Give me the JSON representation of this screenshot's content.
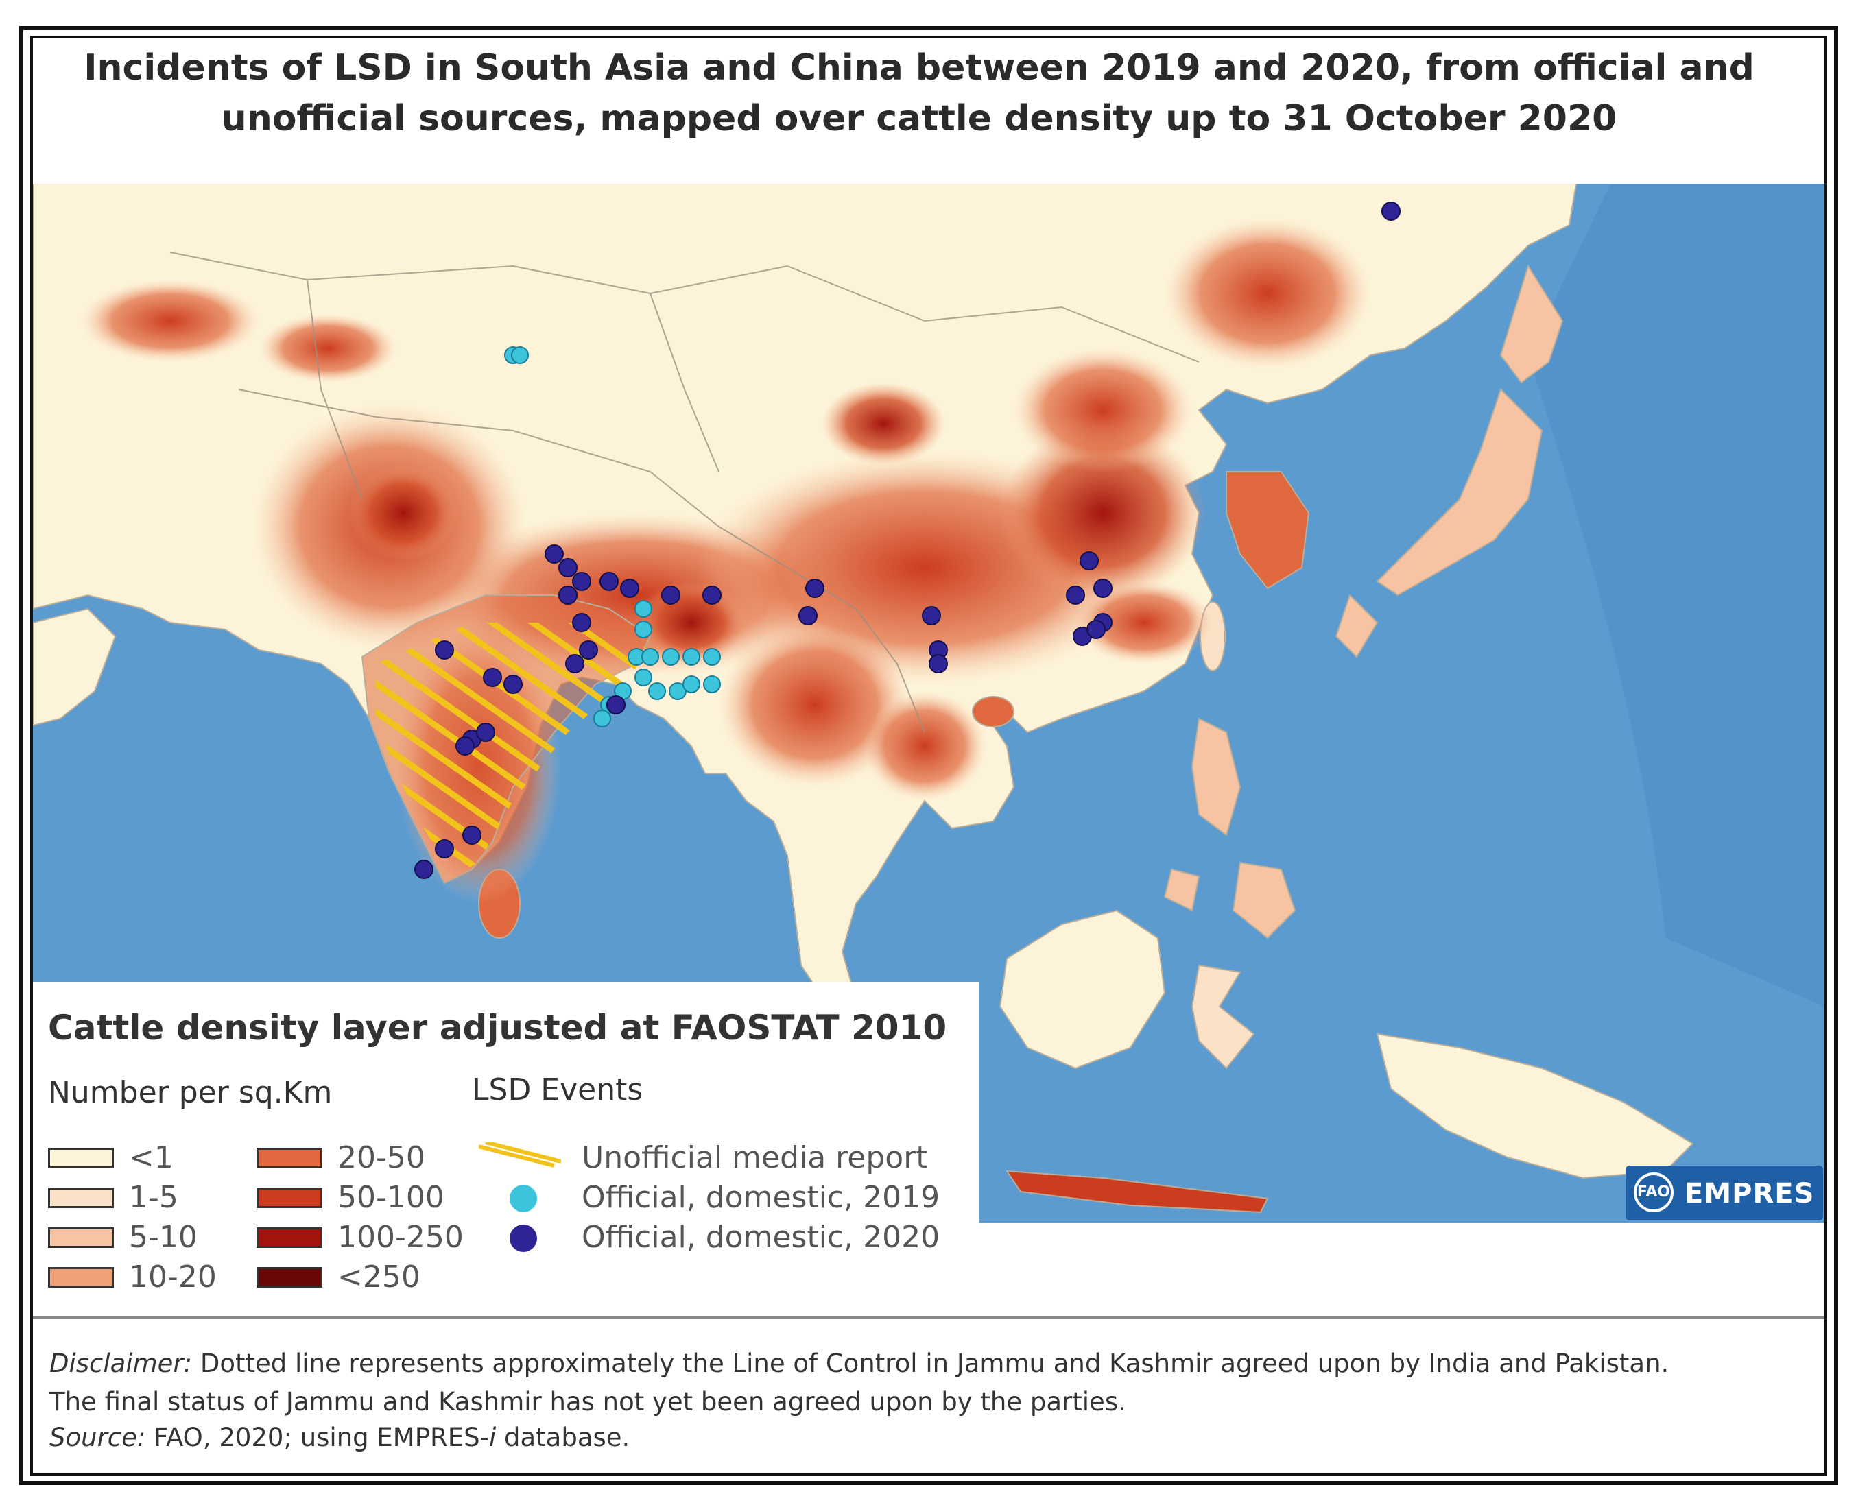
{
  "title": {
    "line1": "Incidents of LSD in South Asia and China between 2019 and 2020, from official and",
    "line2": "unofficial sources, mapped over cattle density up to 31 October 2020"
  },
  "legend": {
    "title": "Cattle density layer adjusted at FAOSTAT 2010",
    "density_heading": "Number per sq.Km",
    "density_classes": [
      {
        "label": "<1",
        "color": "#fdf3d8"
      },
      {
        "label": "1-5",
        "color": "#fbe2c6"
      },
      {
        "label": "5-10",
        "color": "#f6c4a2"
      },
      {
        "label": "10-20",
        "color": "#f0a077"
      },
      {
        "label": "20-50",
        "color": "#e0693f"
      },
      {
        "label": "50-100",
        "color": "#cc3c1e"
      },
      {
        "label": "100-250",
        "color": "#a4140e"
      },
      {
        "label": "<250",
        "color": "#6a0805"
      }
    ],
    "events_heading": "LSD Events",
    "events": [
      {
        "label": "Unofficial media report",
        "color": "#f2c41b"
      },
      {
        "label": "Official, domestic, 2019",
        "color": "#3cc4dc"
      },
      {
        "label": "Official, domestic, 2020",
        "color": "#2e2496"
      }
    ]
  },
  "colors": {
    "sea": "#5b9bd0",
    "land": "#fdf3d8"
  },
  "logo": {
    "fao_text": "FAO",
    "empres_text": "EMPRES"
  },
  "disclaimer": {
    "label": "Disclaimer:",
    "line1_rest": " Dotted line represents approximately the Line of Control in Jammu and Kashmir agreed upon by India and Pakistan.",
    "line2": "The final status of Jammu and Kashmir has not yet been agreed upon by the parties.",
    "source_label": "Source:",
    "source_rest": " FAO, 2020; using EMPRES-",
    "source_italic": "i",
    "source_end": " database."
  }
}
